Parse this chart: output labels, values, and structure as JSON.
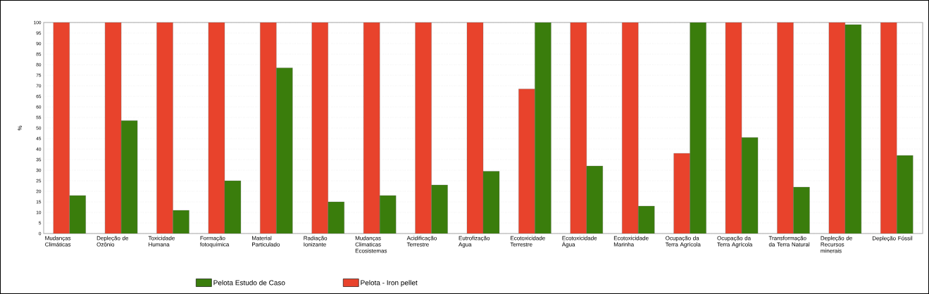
{
  "chart_data": {
    "type": "bar",
    "ylabel": "%",
    "categories": [
      "Mudanças Climáticas",
      "Depleção de Ozônio",
      "Toxicidade Humana",
      "Formação fotoquímica",
      "Material Particulado",
      "Radiação Ionizante",
      "Mudanças Climaticas Ecosistemas",
      "Acidificação Terrestre",
      "Eutrofização Agua",
      "Ecotoxicidade Terrestre",
      "Ecotoxicidade Água",
      "Ecotoxicidade Marinha",
      "Ocupação da Terra Agrícola",
      "Ocupação da Terra Agrícola",
      "Transformação da Terra Natural",
      "Depleção de Recursos minerais",
      "Depleção Fóssil"
    ],
    "series": [
      {
        "name": "Pelota - Iron pellet",
        "color": "#e8432c",
        "values": [
          100,
          100,
          100,
          100,
          100,
          100,
          100,
          100,
          100,
          68.5,
          100,
          100,
          38,
          100,
          100,
          100,
          100
        ]
      },
      {
        "name": "Pelota Estudo de Caso",
        "color": "#3a7d0c",
        "values": [
          18,
          53.5,
          11,
          25,
          78.5,
          15,
          18,
          23,
          29.5,
          100,
          32,
          13,
          100,
          45.5,
          22,
          99,
          37
        ]
      }
    ],
    "ylim": [
      0,
      100
    ],
    "yticks": [
      0,
      5,
      10,
      15,
      20,
      25,
      30,
      35,
      40,
      45,
      50,
      55,
      60,
      65,
      70,
      75,
      80,
      85,
      90,
      95,
      100
    ],
    "grid": "y",
    "legend": "bottom"
  }
}
